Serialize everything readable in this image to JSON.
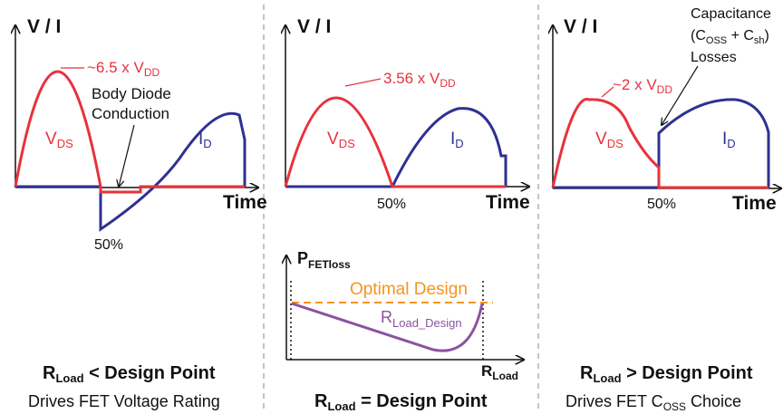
{
  "panel_left": {
    "y_axis_label": "V / I",
    "x_axis_label": "Time",
    "peak_annotation": "~6.5 x V",
    "peak_annotation_sub": "DD",
    "diode_annotation_line1": "Body Diode",
    "diode_annotation_line2": "Conduction",
    "vds_label": "V",
    "vds_label_sub": "DS",
    "id_label": "I",
    "id_label_sub": "D",
    "duty_label": "50%",
    "caption_main": "R",
    "caption_main_sub": "Load",
    "caption_main_rest": " < Design Point",
    "caption_note": "Drives FET Voltage Rating"
  },
  "panel_middle": {
    "y_axis_label": "V / I",
    "x_axis_label": "Time",
    "peak_annotation": "3.56 x V",
    "peak_annotation_sub": "DD",
    "vds_label": "V",
    "vds_label_sub": "DS",
    "id_label": "I",
    "id_label_sub": "D",
    "duty_label": "50%",
    "loss_axis_label": "P",
    "loss_axis_label_sub": "FETloss",
    "optimal_label": "Optimal Design",
    "curve_label": "R",
    "curve_label_sub": "Load_Design",
    "loss_x_axis_label": "R",
    "loss_x_axis_label_sub": "Load",
    "caption_main": "R",
    "caption_main_sub": "Load",
    "caption_main_rest": " = Design Point"
  },
  "panel_right": {
    "y_axis_label": "V / I",
    "x_axis_label": "Time",
    "peak_annotation": "~2 x V",
    "peak_annotation_sub": "DD",
    "cap_annotation_line1": "Capacitance",
    "cap_annotation_line2_a": "(C",
    "cap_annotation_line2_sub1": "OSS",
    "cap_annotation_line2_b": " + C",
    "cap_annotation_line2_sub2": "sh",
    "cap_annotation_line2_c": ")",
    "cap_annotation_line3": "Losses",
    "vds_label": "V",
    "vds_label_sub": "DS",
    "id_label": "I",
    "id_label_sub": "D",
    "duty_label": "50%",
    "caption_main": "R",
    "caption_main_sub": "Load",
    "caption_main_rest": " > Design Point",
    "caption_note_a": "Drives FET C",
    "caption_note_sub": "OSS",
    "caption_note_b": " Choice"
  },
  "colors": {
    "voltage": "#e8323c",
    "current": "#2e3192",
    "optimal": "#f7941d",
    "loss_curve": "#8b52a1",
    "text": "#111111",
    "divider": "#b0b0b0"
  }
}
